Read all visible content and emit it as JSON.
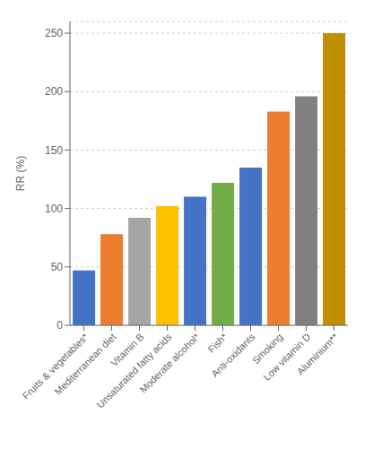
{
  "chart_data": {
    "type": "bar",
    "categories": [
      "Fruits & vegetables*",
      "Mediterranean diet",
      "Vitamin B",
      "Unsaturated fatty acids",
      "Moderate alcohol*",
      "Fish*",
      "Anti-oxidants",
      "Smoking",
      "Low vitamin D",
      "Aluminium**"
    ],
    "values": [
      47,
      78,
      92,
      102,
      110,
      122,
      135,
      183,
      196,
      250
    ],
    "colors": [
      "#4472C4",
      "#ED7D31",
      "#A5A5A5",
      "#FFC000",
      "#4472C4",
      "#70AD47",
      "#4472C4",
      "#ED7D31",
      "#808080",
      "#BF8F00"
    ],
    "ylabel": "RR (%)",
    "ylim": [
      0,
      260
    ],
    "yticks": [
      0,
      50,
      100,
      150,
      200,
      250
    ],
    "grid": true
  }
}
